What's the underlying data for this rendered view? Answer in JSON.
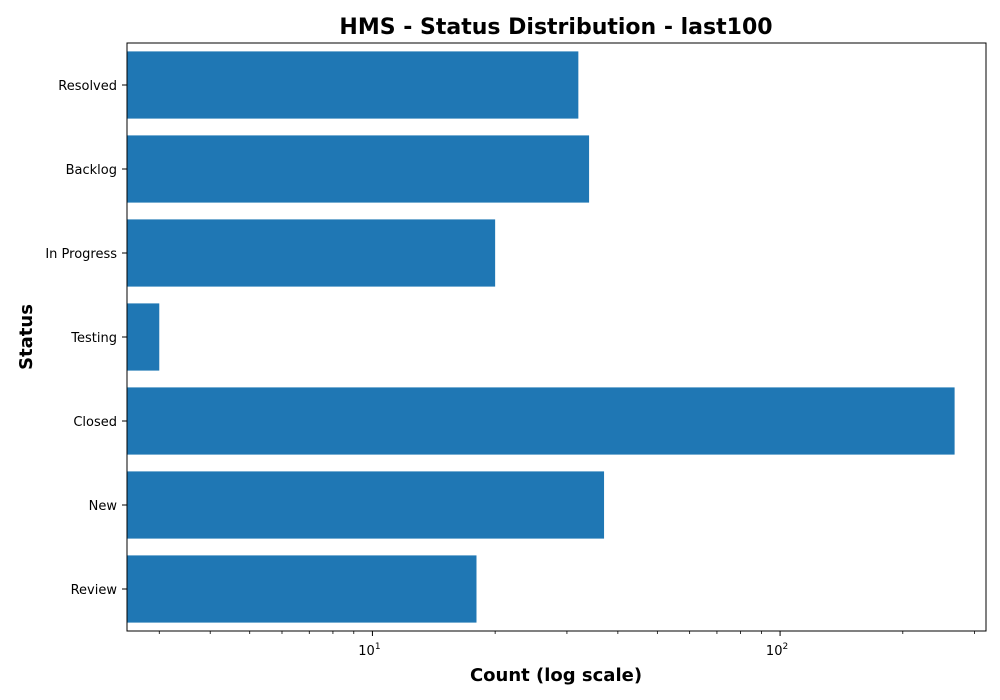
{
  "chart_data": {
    "type": "bar",
    "orientation": "horizontal",
    "title": "HMS - Status Distribution - last100",
    "xlabel": "Count (log scale)",
    "ylabel": "Status",
    "x_scale": "log",
    "xlim": [
      2.5,
      320
    ],
    "x_ticks": [
      {
        "value": 10,
        "base": "10",
        "exp": "1"
      },
      {
        "value": 100,
        "base": "10",
        "exp": "2"
      }
    ],
    "grid": false,
    "bar_color": "#1f77b4",
    "categories": [
      "Resolved",
      "Backlog",
      "In Progress",
      "Testing",
      "Closed",
      "New",
      "Review"
    ],
    "values": [
      32,
      34,
      20,
      3,
      268,
      37,
      18
    ]
  }
}
